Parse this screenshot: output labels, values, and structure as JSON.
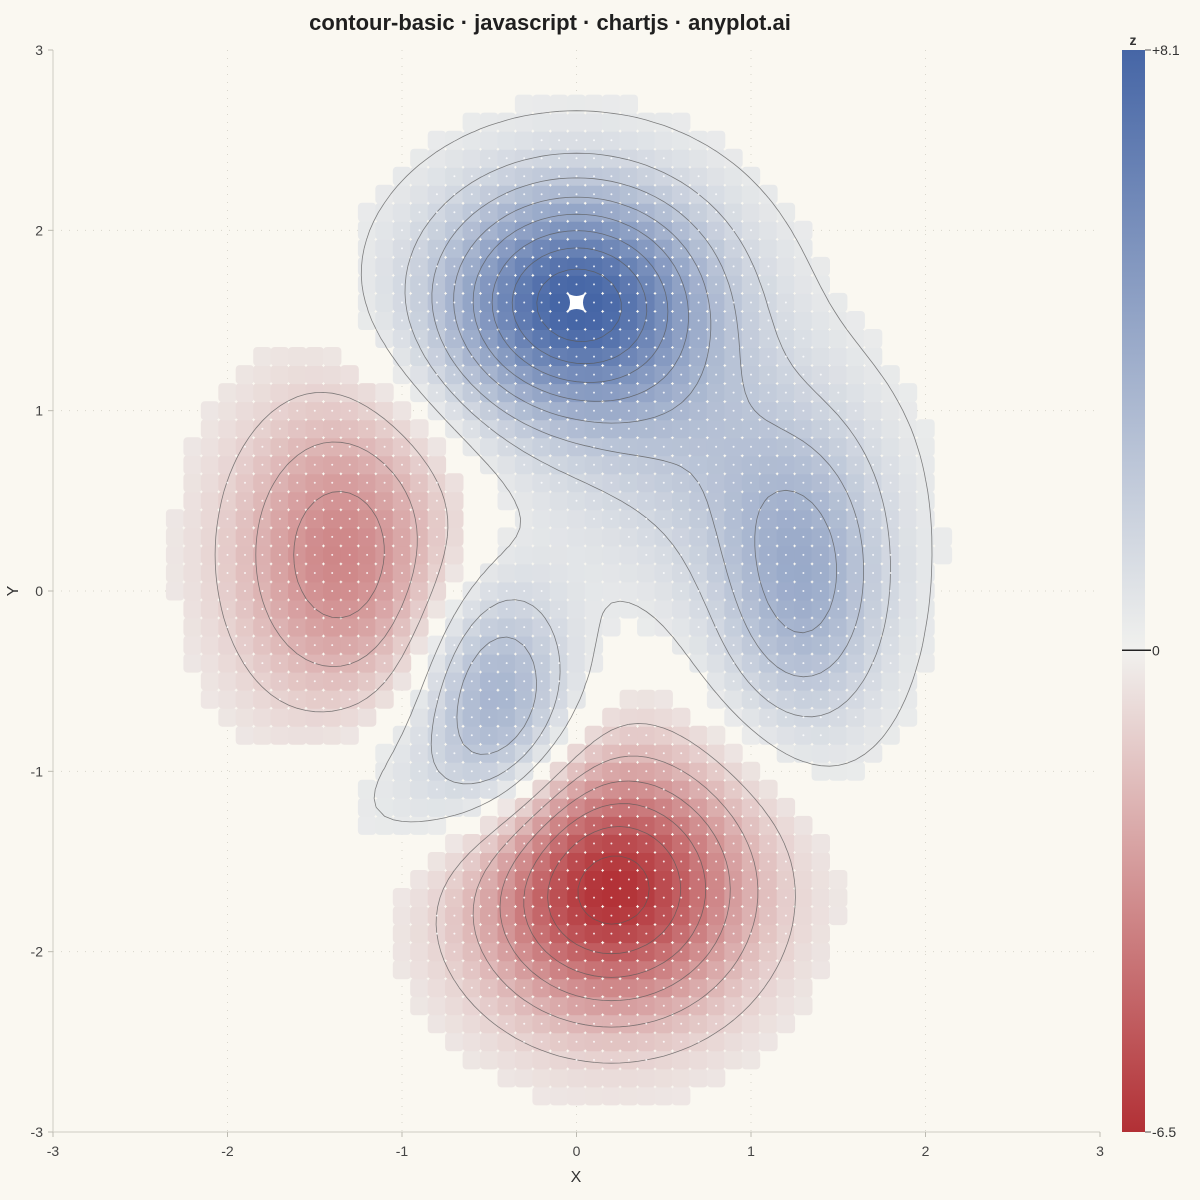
{
  "chart_data": {
    "type": "heatmap",
    "subtype": "contour",
    "title": "contour-basic · javascript · chartjs · anyplot.ai",
    "xlabel": "X",
    "ylabel": "Y",
    "xlim": [
      -3,
      3
    ],
    "ylim": [
      -3,
      3
    ],
    "x_ticks": [
      "-3",
      "-2",
      "-1",
      "0",
      "1",
      "2",
      "3"
    ],
    "y_ticks": [
      "3",
      "2",
      "1",
      "0",
      "-1",
      "-2",
      "-3"
    ],
    "grid": true,
    "colorbar": {
      "title": "z",
      "max_label": "+8.1",
      "zero_label": "0",
      "min_label": "-6.5",
      "max": 8.1,
      "min": -6.5,
      "position": "right",
      "high_color": "#4666A6",
      "zero_color": "#F1F1EE",
      "low_color": "#B23035"
    },
    "grid_resolution": 61,
    "surface": {
      "description_of_terms": "sum of gaussian bumps",
      "bumps": [
        {
          "x": 0.0,
          "y": 1.6,
          "amplitude": 8.1,
          "sx": 0.55,
          "sy": 0.45
        },
        {
          "x": 0.2,
          "y": -1.65,
          "amplitude": -6.5,
          "sx": 0.55,
          "sy": 0.5
        },
        {
          "x": -1.35,
          "y": 0.2,
          "amplitude": -3.6,
          "sx": 0.45,
          "sy": 0.6
        },
        {
          "x": -0.45,
          "y": -0.6,
          "amplitude": 3.8,
          "sx": 0.3,
          "sy": 0.45
        },
        {
          "x": 1.3,
          "y": 0.0,
          "amplitude": 3.6,
          "sx": 0.35,
          "sy": 0.55
        },
        {
          "x": 0.8,
          "y": 0.7,
          "amplitude": 1.8,
          "sx": 0.6,
          "sy": 0.5
        },
        {
          "x": -0.9,
          "y": -1.1,
          "amplitude": 1.0,
          "sx": 0.45,
          "sy": 0.35
        }
      ]
    },
    "extrema": [
      {
        "x": 0.0,
        "y": 1.6,
        "z": 8.1,
        "kind": "max"
      },
      {
        "x": 0.2,
        "y": -1.65,
        "z": -6.5,
        "kind": "min"
      }
    ],
    "contour_levels": [
      -6,
      -5,
      -4,
      -3,
      -2,
      -1,
      0.5,
      1.5,
      2.5,
      3.5,
      4.5,
      5.5,
      6.5,
      7.5
    ]
  },
  "colors": {
    "background": "#FAF8F1",
    "contour_line": "#5a5a5a",
    "grid": "#d8d6cc"
  }
}
